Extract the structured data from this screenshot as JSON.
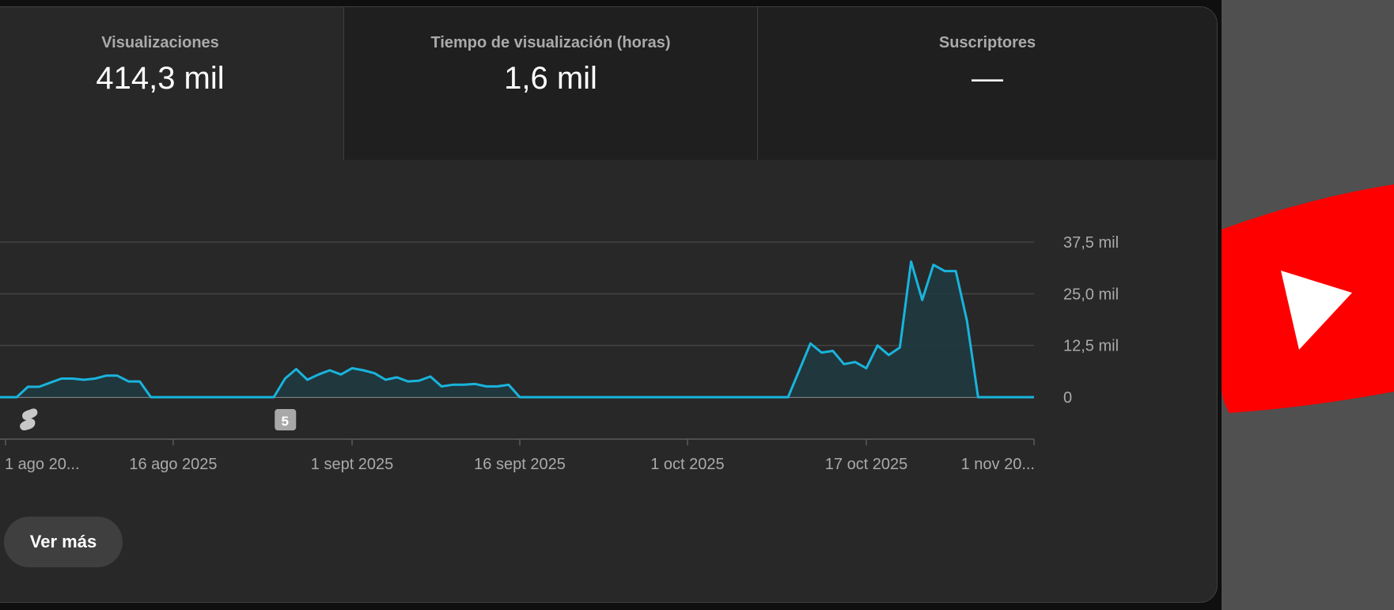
{
  "metrics": [
    {
      "label": "Visualizaciones",
      "value": "414,3 mil"
    },
    {
      "label": "Tiempo de visualización (horas)",
      "value": "1,6 mil"
    },
    {
      "label": "Suscriptores",
      "value": "—"
    }
  ],
  "chart_data": {
    "type": "area",
    "title": "",
    "xlabel": "",
    "ylabel": "",
    "ylim": [
      0,
      37500
    ],
    "y_ticks": [
      {
        "value": 0,
        "label": "0"
      },
      {
        "value": 12500,
        "label": "12,5 mil"
      },
      {
        "value": 25000,
        "label": "25,0 mil"
      },
      {
        "value": 37500,
        "label": "37,5 mil"
      }
    ],
    "x_range": [
      "2025-08-01",
      "2025-11-01"
    ],
    "x_ticks": [
      {
        "date": "2025-08-01",
        "label": "1 ago 20..."
      },
      {
        "date": "2025-08-16",
        "label": "16 ago 2025"
      },
      {
        "date": "2025-09-01",
        "label": "1 sept 2025"
      },
      {
        "date": "2025-09-16",
        "label": "16 sept 2025"
      },
      {
        "date": "2025-10-01",
        "label": "1 oct 2025"
      },
      {
        "date": "2025-10-17",
        "label": "17 oct 2025"
      },
      {
        "date": "2025-11-01",
        "label": "1 nov 20..."
      }
    ],
    "series": [
      {
        "color": "#19b4dc",
        "points": [
          [
            "2025-08-01",
            0
          ],
          [
            "2025-08-02",
            0
          ],
          [
            "2025-08-03",
            2500
          ],
          [
            "2025-08-04",
            2500
          ],
          [
            "2025-08-05",
            3500
          ],
          [
            "2025-08-06",
            4500
          ],
          [
            "2025-08-07",
            4500
          ],
          [
            "2025-08-08",
            4200
          ],
          [
            "2025-08-09",
            4500
          ],
          [
            "2025-08-10",
            5200
          ],
          [
            "2025-08-11",
            5200
          ],
          [
            "2025-08-12",
            3800
          ],
          [
            "2025-08-13",
            3800
          ],
          [
            "2025-08-14",
            0
          ],
          [
            "2025-08-15",
            0
          ],
          [
            "2025-08-16",
            0
          ],
          [
            "2025-08-17",
            0
          ],
          [
            "2025-08-18",
            0
          ],
          [
            "2025-08-19",
            0
          ],
          [
            "2025-08-20",
            0
          ],
          [
            "2025-08-21",
            0
          ],
          [
            "2025-08-22",
            0
          ],
          [
            "2025-08-23",
            0
          ],
          [
            "2025-08-24",
            0
          ],
          [
            "2025-08-25",
            0
          ],
          [
            "2025-08-26",
            4500
          ],
          [
            "2025-08-27",
            6800
          ],
          [
            "2025-08-28",
            4200
          ],
          [
            "2025-08-29",
            5500
          ],
          [
            "2025-08-30",
            6500
          ],
          [
            "2025-08-31",
            5500
          ],
          [
            "2025-09-01",
            7000
          ],
          [
            "2025-09-02",
            6500
          ],
          [
            "2025-09-03",
            5800
          ],
          [
            "2025-09-04",
            4200
          ],
          [
            "2025-09-05",
            4800
          ],
          [
            "2025-09-06",
            3800
          ],
          [
            "2025-09-07",
            4000
          ],
          [
            "2025-09-08",
            5000
          ],
          [
            "2025-09-09",
            2600
          ],
          [
            "2025-09-10",
            3000
          ],
          [
            "2025-09-11",
            3000
          ],
          [
            "2025-09-12",
            3200
          ],
          [
            "2025-09-13",
            2600
          ],
          [
            "2025-09-14",
            2600
          ],
          [
            "2025-09-15",
            3000
          ],
          [
            "2025-09-16",
            0
          ],
          [
            "2025-09-17",
            0
          ],
          [
            "2025-09-18",
            0
          ],
          [
            "2025-09-19",
            0
          ],
          [
            "2025-09-20",
            0
          ],
          [
            "2025-09-21",
            0
          ],
          [
            "2025-09-22",
            0
          ],
          [
            "2025-09-23",
            0
          ],
          [
            "2025-09-24",
            0
          ],
          [
            "2025-09-25",
            0
          ],
          [
            "2025-09-26",
            0
          ],
          [
            "2025-09-27",
            0
          ],
          [
            "2025-09-28",
            0
          ],
          [
            "2025-09-29",
            0
          ],
          [
            "2025-09-30",
            0
          ],
          [
            "2025-10-01",
            0
          ],
          [
            "2025-10-02",
            0
          ],
          [
            "2025-10-03",
            0
          ],
          [
            "2025-10-04",
            0
          ],
          [
            "2025-10-05",
            0
          ],
          [
            "2025-10-06",
            0
          ],
          [
            "2025-10-07",
            0
          ],
          [
            "2025-10-08",
            0
          ],
          [
            "2025-10-09",
            0
          ],
          [
            "2025-10-10",
            0
          ],
          [
            "2025-10-11",
            6500
          ],
          [
            "2025-10-12",
            13000
          ],
          [
            "2025-10-13",
            10800
          ],
          [
            "2025-10-14",
            11200
          ],
          [
            "2025-10-15",
            8000
          ],
          [
            "2025-10-16",
            8500
          ],
          [
            "2025-10-17",
            7000
          ],
          [
            "2025-10-18",
            12500
          ],
          [
            "2025-10-19",
            10200
          ],
          [
            "2025-10-20",
            12000
          ],
          [
            "2025-10-21",
            32800
          ],
          [
            "2025-10-22",
            23500
          ],
          [
            "2025-10-23",
            32000
          ],
          [
            "2025-10-24",
            30500
          ],
          [
            "2025-10-25",
            30500
          ],
          [
            "2025-10-26",
            18500
          ],
          [
            "2025-10-27",
            0
          ],
          [
            "2025-10-28",
            0
          ],
          [
            "2025-10-29",
            0
          ],
          [
            "2025-10-30",
            0
          ],
          [
            "2025-10-31",
            0
          ],
          [
            "2025-11-01",
            0
          ]
        ]
      }
    ],
    "markers": [
      {
        "date": "2025-08-03",
        "kind": "shorts-icon",
        "label": ""
      },
      {
        "date": "2025-08-26",
        "kind": "badge",
        "label": "5"
      }
    ],
    "grid": true
  },
  "buttons": {
    "more_label": "Ver más"
  },
  "colors": {
    "line": "#19b4dc",
    "fill": "#1f3a42",
    "youtube_red": "#ff0000",
    "card_bg": "#282828"
  },
  "side_logo": {
    "icon": "youtube-logo-icon"
  }
}
